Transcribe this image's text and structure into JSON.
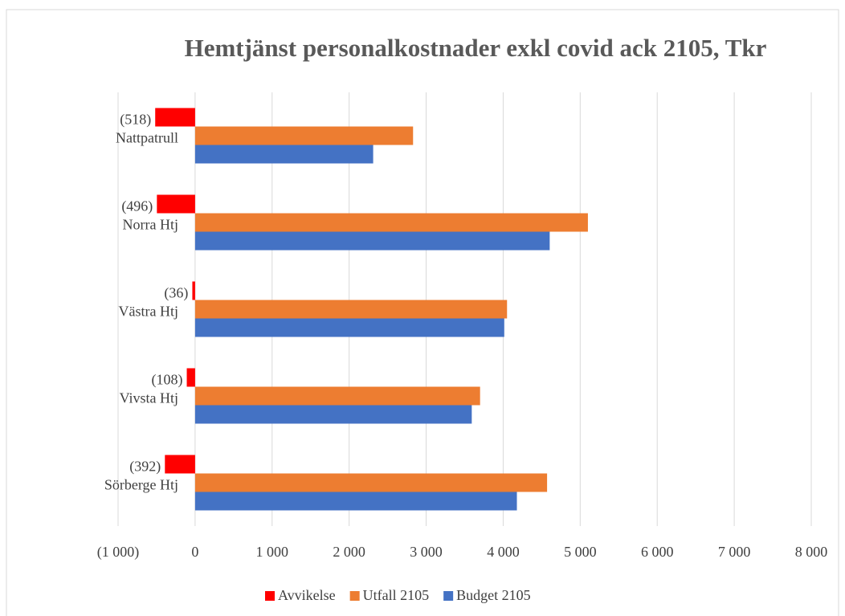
{
  "chart_data": {
    "type": "hbar",
    "title": "Hemtjänst personalkostnader exkl covid ack 2105, Tkr",
    "categories": [
      "Nattpatrull",
      "Norra Htj",
      "Västra Htj",
      "Vivsta Htj",
      "Sörberge Htj"
    ],
    "series": [
      {
        "name": "Avvikelse",
        "color": "#ff0000",
        "values": [
          -518,
          -496,
          -36,
          -108,
          -392
        ],
        "value_labels": [
          "(518)",
          "(496)",
          "(36)",
          "(108)",
          "(392)"
        ]
      },
      {
        "name": "Utfall 2105",
        "color": "#ed7d31",
        "values": [
          2830,
          5100,
          4050,
          3700,
          4570
        ]
      },
      {
        "name": "Budget 2105",
        "color": "#4472c4",
        "values": [
          2312,
          4604,
          4014,
          3592,
          4178
        ]
      }
    ],
    "xlim": [
      -1000,
      8000
    ],
    "xticks": [
      {
        "value": -1000,
        "label": "(1 000)"
      },
      0,
      {
        "value": 1000,
        "label": "1 000"
      },
      {
        "value": 2000,
        "label": "2 000"
      },
      {
        "value": 3000,
        "label": "3 000"
      },
      {
        "value": 4000,
        "label": "4 000"
      },
      {
        "value": 5000,
        "label": "5 000"
      },
      {
        "value": 6000,
        "label": "6 000"
      },
      {
        "value": 7000,
        "label": "7 000"
      },
      {
        "value": 8000,
        "label": "8 000"
      }
    ],
    "grid": true,
    "legend": "bottom"
  }
}
